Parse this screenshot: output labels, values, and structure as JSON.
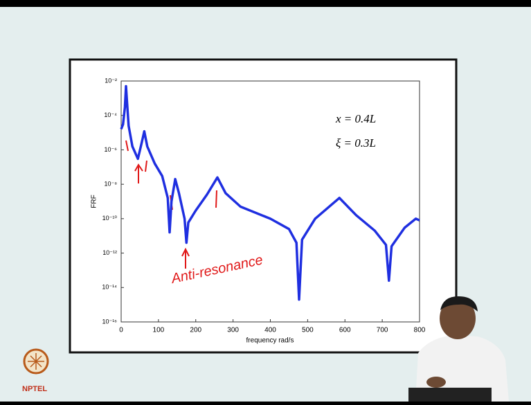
{
  "chart_data": {
    "type": "line",
    "ylog": true,
    "grid": false,
    "ylabel": "FRF",
    "xlabel": "frequency rad/s",
    "x": [
      0,
      5,
      10,
      13,
      16,
      20,
      30,
      45,
      55,
      62,
      70,
      90,
      110,
      125,
      130,
      135,
      145,
      155,
      170,
      175,
      180,
      200,
      230,
      258,
      280,
      320,
      400,
      450,
      470,
      477,
      485,
      520,
      585,
      630,
      680,
      710,
      718,
      725,
      760,
      790,
      800
    ],
    "series": [
      {
        "color": "#1f2fe0",
        "values": [
          1.6e-05,
          3e-05,
          0.0003,
          0.005,
          0.0005,
          2.5e-05,
          1.6e-06,
          3e-07,
          2.5e-06,
          1.2e-05,
          1.6e-06,
          1.6e-07,
          3e-08,
          1.6e-09,
          1.6e-11,
          1e-09,
          2e-08,
          3e-09,
          1e-10,
          4e-12,
          6e-11,
          3e-10,
          2.5e-09,
          2.5e-08,
          3e-09,
          5e-10,
          1e-10,
          2.5e-11,
          4e-12,
          2e-15,
          6e-12,
          1e-10,
          1.6e-09,
          1.6e-10,
          2e-11,
          3e-12,
          2.5e-14,
          2.5e-12,
          3e-11,
          1e-10,
          8e-11
        ]
      }
    ],
    "xlim": [
      0,
      800
    ],
    "xticks": [
      0,
      100,
      200,
      300,
      400,
      500,
      600,
      700,
      800
    ],
    "ylim": [
      1e-16,
      0.01
    ],
    "yticks": [
      {
        "value": 1e-16,
        "label": "10⁻¹⁶"
      },
      {
        "value": 1e-14,
        "label": "10⁻¹⁴"
      },
      {
        "value": 1e-12,
        "label": "10⁻¹²"
      },
      {
        "value": 1e-10,
        "label": "10⁻¹⁰"
      },
      {
        "value": 1e-08,
        "label": "10⁻⁸"
      },
      {
        "value": 1e-06,
        "label": "10⁻⁶"
      },
      {
        "value": 0.0001,
        "label": "10⁻⁴"
      },
      {
        "value": 0.01,
        "label": "10⁻²"
      }
    ],
    "annotations": [
      "x = 0.4L",
      "ξ = 0.3L",
      "Anti-resonance"
    ]
  },
  "logo": "NPTEL"
}
